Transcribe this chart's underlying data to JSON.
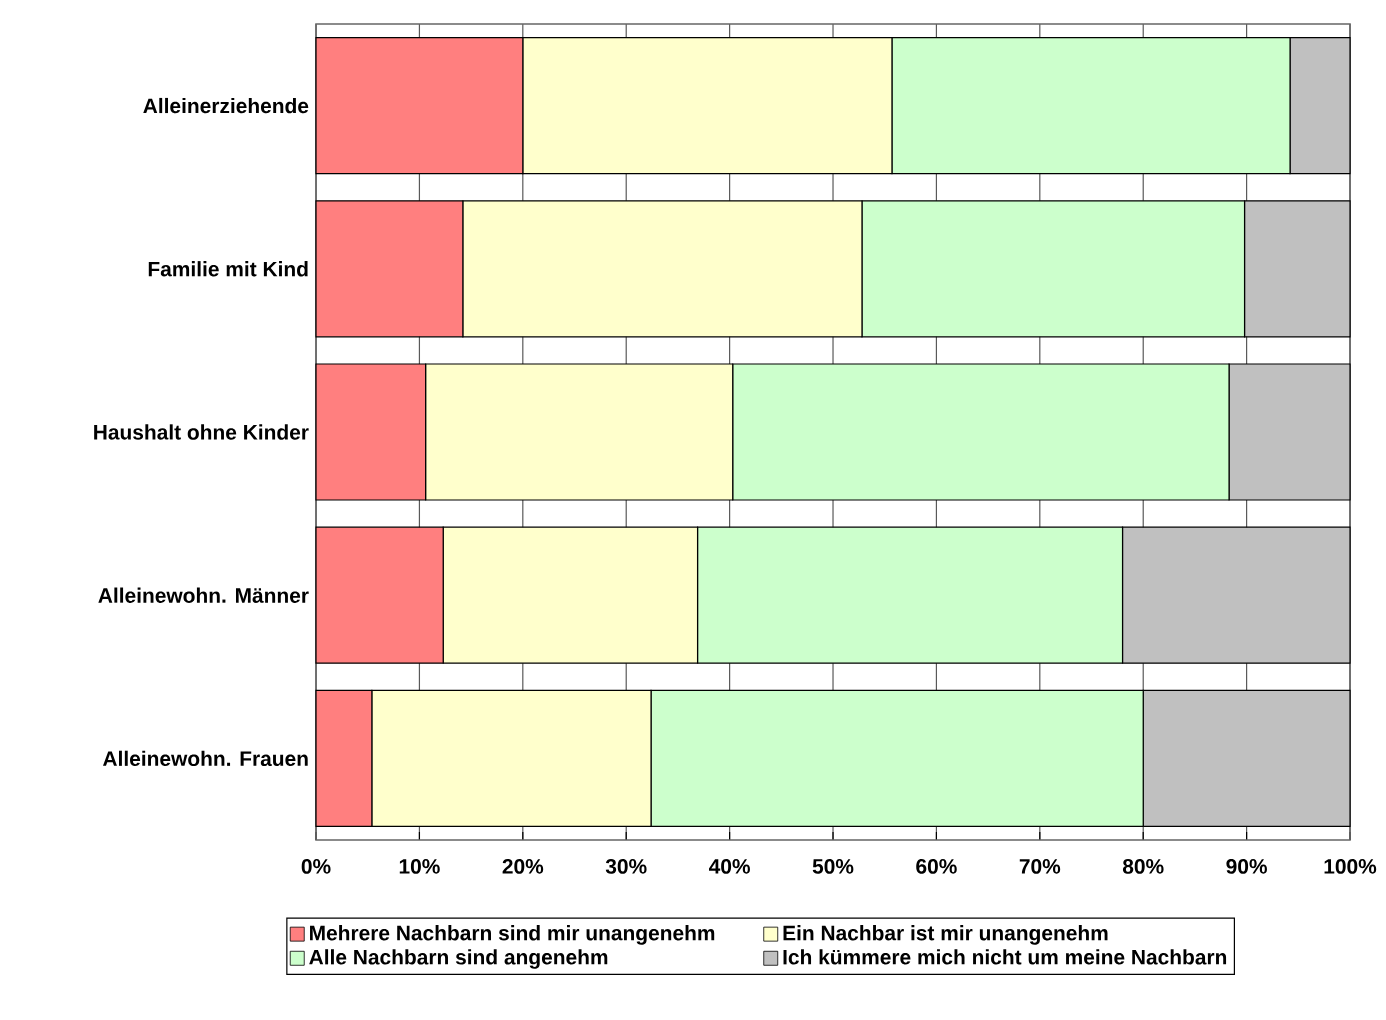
{
  "chart_data": {
    "type": "bar",
    "orientation": "horizontal",
    "stacked": true,
    "categories": [
      "Alleinerziehende",
      "Familie mit Kind",
      "Haushalt ohne Kinder",
      "Alleinewohn. Männer",
      "Alleinewohn. Frauen"
    ],
    "series": [
      {
        "name": "Mehrere Nachbarn sind mir unangenehm",
        "color": "#ff7f7f",
        "values": [
          20.0,
          14.2,
          10.6,
          12.3,
          5.4
        ]
      },
      {
        "name": "Ein Nachbar ist mir unangenehm",
        "color": "#ffffcc",
        "values": [
          35.7,
          38.6,
          29.7,
          24.6,
          27.0
        ]
      },
      {
        "name": "Alle Nachbarn sind angenehm",
        "color": "#ccffcc",
        "values": [
          38.5,
          37.0,
          48.0,
          41.1,
          47.6
        ]
      },
      {
        "name": "Ich kümmere mich nicht um meine Nachbarn",
        "color": "#c0c0c0",
        "values": [
          5.8,
          10.2,
          11.7,
          22.0,
          20.0
        ]
      }
    ],
    "xlim": [
      0,
      100
    ],
    "xticks": [
      {
        "value": 0,
        "label": "0%"
      },
      {
        "value": 10,
        "label": "10%"
      },
      {
        "value": 20,
        "label": "20%"
      },
      {
        "value": 30,
        "label": "30%"
      },
      {
        "value": 40,
        "label": "40%"
      },
      {
        "value": 50,
        "label": "50%"
      },
      {
        "value": 60,
        "label": "60%"
      },
      {
        "value": 70,
        "label": "70%"
      },
      {
        "value": 80,
        "label": "80%"
      },
      {
        "value": 90,
        "label": "90%"
      },
      {
        "value": 100,
        "label": "100%"
      }
    ],
    "grid": "x",
    "legend": "bottom"
  }
}
